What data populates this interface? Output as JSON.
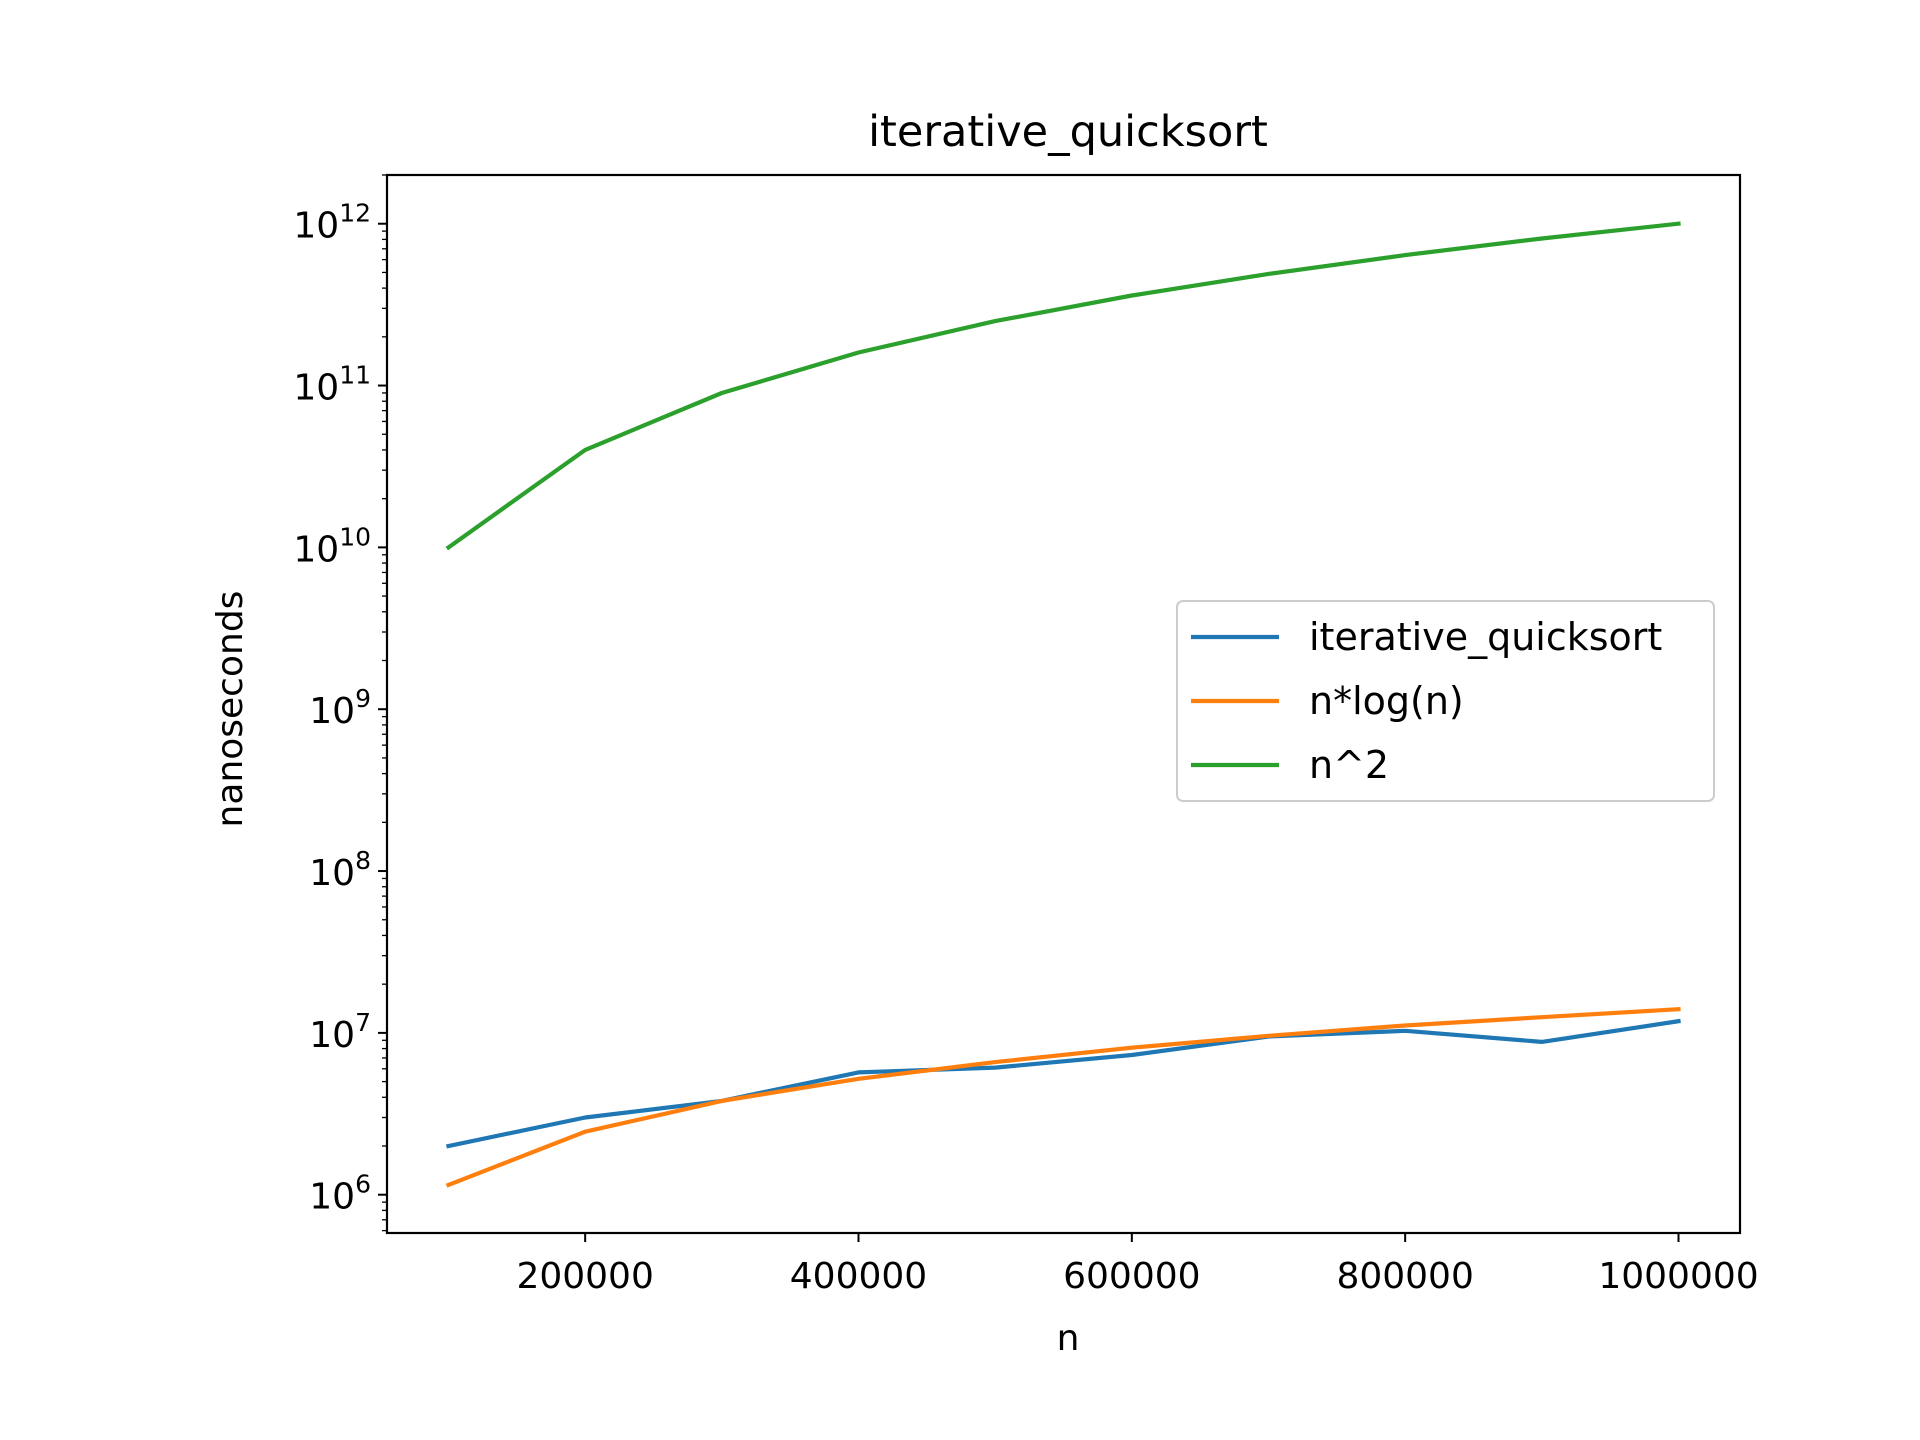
{
  "chart_data": {
    "type": "line",
    "title": "iterative_quicksort",
    "xlabel": "n",
    "ylabel": "nanoseconds",
    "x": [
      100000,
      200000,
      300000,
      400000,
      500000,
      600000,
      700000,
      800000,
      900000,
      1000000
    ],
    "xlim": [
      55000,
      1045000
    ],
    "ylim": [
      580000.0,
      2000000000000.0
    ],
    "yscale": "log",
    "xticks": [
      200000,
      400000,
      600000,
      800000,
      1000000
    ],
    "xtick_labels": [
      "200000",
      "400000",
      "600000",
      "800000",
      "1000000"
    ],
    "yticks": [
      {
        "value": 1000000.0,
        "base": "10",
        "exp": "6"
      },
      {
        "value": 10000000.0,
        "base": "10",
        "exp": "7"
      },
      {
        "value": 100000000.0,
        "base": "10",
        "exp": "8"
      },
      {
        "value": 1000000000.0,
        "base": "10",
        "exp": "9"
      },
      {
        "value": 10000000000.0,
        "base": "10",
        "exp": "10"
      },
      {
        "value": 100000000000.0,
        "base": "10",
        "exp": "11"
      },
      {
        "value": 1000000000000.0,
        "base": "10",
        "exp": "12"
      }
    ],
    "legend_position": "center-right",
    "grid": false,
    "series": [
      {
        "name": "iterative_quicksort",
        "color": "#1f77b4",
        "values": [
          2000000.0,
          3000000.0,
          3800000.0,
          5700000.0,
          6100000.0,
          7300000.0,
          9500000.0,
          10300000.0,
          8800000.0,
          11800000.0
        ]
      },
      {
        "name": "n*log(n)",
        "color": "#ff7f0e",
        "values": [
          1150000.0,
          2450000.0,
          3800000.0,
          5200000.0,
          6600000.0,
          8100000.0,
          9600000.0,
          11100000.0,
          12500000.0,
          14000000.0
        ]
      },
      {
        "name": "n^2",
        "color": "#2ca02c",
        "values": [
          10000000000.0,
          40000000000.0,
          90000000000.0,
          160000000000.0,
          250000000000.0,
          360000000000.0,
          490000000000.0,
          640000000000.0,
          810000000000.0,
          1000000000000.0
        ]
      }
    ]
  }
}
